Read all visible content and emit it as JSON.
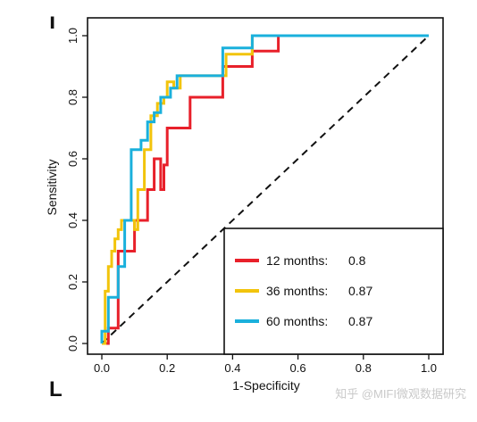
{
  "chart_data": {
    "type": "line",
    "title": "",
    "xlabel": "1-Specificity",
    "ylabel": "Sensitivity",
    "xlim": [
      0,
      1
    ],
    "ylim": [
      0,
      1
    ],
    "xticks": [
      "0.0",
      "0.2",
      "0.4",
      "0.6",
      "0.8",
      "1.0"
    ],
    "yticks": [
      "0.0",
      "0.2",
      "0.4",
      "0.6",
      "0.8",
      "1.0"
    ],
    "grid": false,
    "legend_position": "bottom-right",
    "reference_line": "diagonal-dashed",
    "series": [
      {
        "name": "12 months:",
        "auc": "0.8",
        "color": "#e8202a",
        "x": [
          0.0,
          0.02,
          0.02,
          0.05,
          0.05,
          0.1,
          0.1,
          0.14,
          0.14,
          0.16,
          0.16,
          0.18,
          0.18,
          0.19,
          0.19,
          0.2,
          0.2,
          0.27,
          0.27,
          0.37,
          0.37,
          0.46,
          0.46,
          0.54,
          0.54,
          1.0
        ],
        "y": [
          0.0,
          0.0,
          0.05,
          0.05,
          0.3,
          0.3,
          0.4,
          0.4,
          0.5,
          0.5,
          0.6,
          0.6,
          0.5,
          0.5,
          0.58,
          0.58,
          0.7,
          0.7,
          0.8,
          0.8,
          0.9,
          0.9,
          0.95,
          0.95,
          1.0,
          1.0
        ]
      },
      {
        "name": "36 months:",
        "auc": "0.87",
        "color": "#f2c40c",
        "x": [
          0.0,
          0.01,
          0.01,
          0.02,
          0.02,
          0.03,
          0.03,
          0.04,
          0.04,
          0.05,
          0.05,
          0.06,
          0.06,
          0.08,
          0.08,
          0.1,
          0.1,
          0.11,
          0.11,
          0.13,
          0.13,
          0.15,
          0.15,
          0.17,
          0.17,
          0.19,
          0.19,
          0.2,
          0.2,
          0.22,
          0.22,
          0.24,
          0.24,
          0.38,
          0.38,
          0.46,
          0.46,
          1.0
        ],
        "y": [
          0.0,
          0.0,
          0.17,
          0.17,
          0.25,
          0.25,
          0.3,
          0.3,
          0.34,
          0.34,
          0.37,
          0.37,
          0.4,
          0.4,
          0.4,
          0.4,
          0.37,
          0.37,
          0.5,
          0.5,
          0.63,
          0.63,
          0.74,
          0.74,
          0.78,
          0.78,
          0.8,
          0.8,
          0.85,
          0.85,
          0.83,
          0.83,
          0.87,
          0.87,
          0.94,
          0.94,
          1.0,
          1.0
        ]
      },
      {
        "name": "60 months:",
        "auc": "0.87",
        "color": "#1ab0dc",
        "x": [
          0.0,
          0.0,
          0.02,
          0.02,
          0.05,
          0.05,
          0.07,
          0.07,
          0.09,
          0.09,
          0.12,
          0.12,
          0.14,
          0.14,
          0.16,
          0.16,
          0.18,
          0.18,
          0.21,
          0.21,
          0.23,
          0.23,
          0.37,
          0.37,
          0.46,
          0.46,
          1.0
        ],
        "y": [
          0.0,
          0.04,
          0.04,
          0.15,
          0.15,
          0.25,
          0.25,
          0.4,
          0.4,
          0.63,
          0.63,
          0.66,
          0.66,
          0.72,
          0.72,
          0.75,
          0.75,
          0.8,
          0.8,
          0.83,
          0.83,
          0.87,
          0.87,
          0.96,
          0.96,
          1.0,
          1.0
        ]
      }
    ],
    "reference": {
      "x": [
        0,
        1
      ],
      "y": [
        0,
        1
      ]
    }
  },
  "watermark": "知乎 @MIFI微观数据研究",
  "corner_marks": {
    "top_left": "ı",
    "bottom_left": "L"
  }
}
